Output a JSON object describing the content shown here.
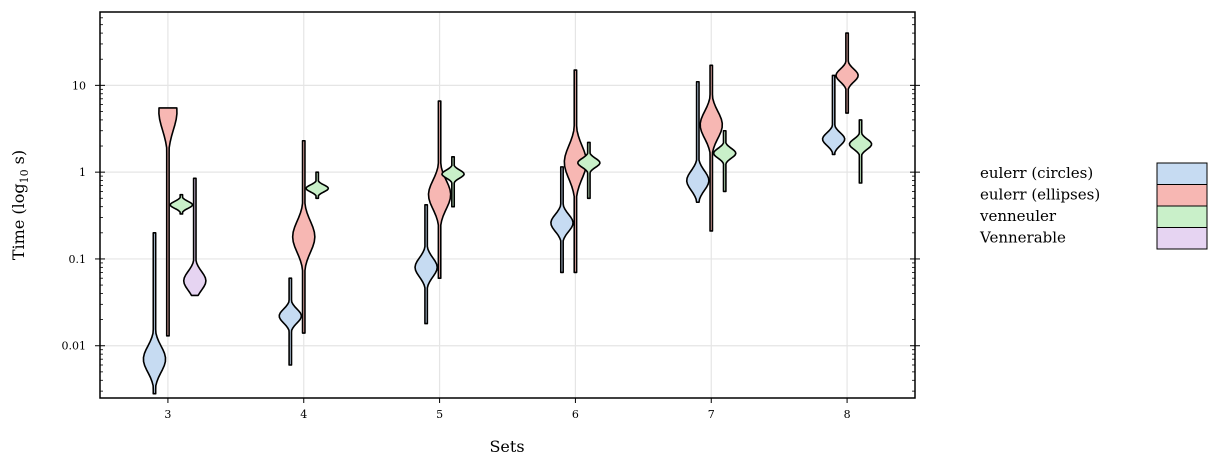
{
  "chart_data": {
    "type": "violin",
    "xlabel": "Sets",
    "ylabel_main": "Time (log",
    "ylabel_sub": "10",
    "ylabel_end": " s)",
    "ylim": [
      0.0025,
      70
    ],
    "yscale": "log",
    "categories": [
      "3",
      "4",
      "5",
      "6",
      "7",
      "8"
    ],
    "yticks": [
      {
        "value": 0.01,
        "label": "0.01"
      },
      {
        "value": 0.1,
        "label": "0.1"
      },
      {
        "value": 1,
        "label": "1"
      },
      {
        "value": 10,
        "label": "10"
      }
    ],
    "grid": true,
    "legend_position": "right",
    "series": [
      {
        "name": "eulerr (circles)",
        "color": "#c6dbf2",
        "offset": -0.3,
        "violins": [
          {
            "min": 0.0028,
            "max": 0.2,
            "mode": 0.007,
            "width": 0.55
          },
          {
            "min": 0.006,
            "max": 0.06,
            "mode": 0.022,
            "width": 0.55
          },
          {
            "min": 0.018,
            "max": 0.42,
            "mode": 0.08,
            "width": 0.55
          },
          {
            "min": 0.07,
            "max": 1.15,
            "mode": 0.26,
            "width": 0.55
          },
          {
            "min": 0.45,
            "max": 11,
            "mode": 0.8,
            "width": 0.55
          },
          {
            "min": 1.6,
            "max": 13,
            "mode": 2.4,
            "width": 0.55
          }
        ]
      },
      {
        "name": "eulerr (ellipses)",
        "color": "#f7b7b3",
        "offset": 0.0,
        "violins": [
          {
            "min": 0.013,
            "max": 5.5,
            "mode": 5.0,
            "width": 0.45
          },
          {
            "min": 0.014,
            "max": 2.3,
            "mode": 0.18,
            "width": 0.55
          },
          {
            "min": 0.06,
            "max": 6.6,
            "mode": 0.55,
            "width": 0.55
          },
          {
            "min": 0.07,
            "max": 15,
            "mode": 1.3,
            "width": 0.55
          },
          {
            "min": 0.21,
            "max": 17,
            "mode": 3.5,
            "width": 0.55
          },
          {
            "min": 4.8,
            "max": 40,
            "mode": 13,
            "width": 0.55
          }
        ]
      },
      {
        "name": "venneuler",
        "color": "#c9f0c9",
        "offset": 0.3,
        "violins": [
          {
            "min": 0.33,
            "max": 0.55,
            "mode": 0.42,
            "width": 0.55
          },
          {
            "min": 0.5,
            "max": 1.0,
            "mode": 0.65,
            "width": 0.55
          },
          {
            "min": 0.4,
            "max": 1.5,
            "mode": 0.95,
            "width": 0.55
          },
          {
            "min": 0.5,
            "max": 2.2,
            "mode": 1.28,
            "width": 0.55
          },
          {
            "min": 0.6,
            "max": 3.0,
            "mode": 1.65,
            "width": 0.55
          },
          {
            "min": 0.75,
            "max": 4.0,
            "mode": 2.1,
            "width": 0.55
          }
        ]
      },
      {
        "name": "Vennerable",
        "color": "#e6d4f2",
        "offset": 0.6,
        "violins": [
          {
            "min": 0.038,
            "max": 0.85,
            "mode": 0.056,
            "width": 0.55
          }
        ]
      }
    ]
  }
}
